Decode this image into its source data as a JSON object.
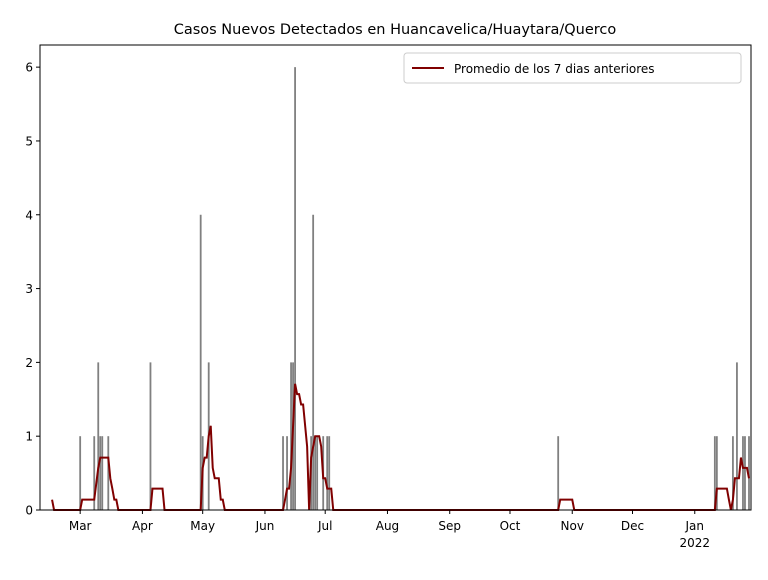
{
  "chart_data": {
    "type": "bar_line",
    "title": "Casos Nuevos Detectados en Huancavelica/Huaytara/Querco",
    "xlim": [
      -1,
      353
    ],
    "xticks": [
      {
        "value": 19,
        "label": "Mar"
      },
      {
        "value": 50,
        "label": "Apr"
      },
      {
        "value": 80,
        "label": "May"
      },
      {
        "value": 111,
        "label": "Jun"
      },
      {
        "value": 141,
        "label": "Jul"
      },
      {
        "value": 172,
        "label": "Aug"
      },
      {
        "value": 203,
        "label": "Sep"
      },
      {
        "value": 233,
        "label": "Oct"
      },
      {
        "value": 264,
        "label": "Nov"
      },
      {
        "value": 294,
        "label": "Dec"
      },
      {
        "value": 325,
        "label": "Jan"
      }
    ],
    "x_year_label": "2022",
    "ylim": [
      0,
      6.3
    ],
    "yticks": [
      0,
      1,
      2,
      3,
      4,
      5,
      6
    ],
    "legend": "upper right",
    "bars": {
      "color": "#808080",
      "x": [
        19,
        26,
        28,
        29,
        30,
        33,
        54,
        79,
        80,
        83,
        120,
        122,
        124,
        125,
        126,
        134,
        135,
        136,
        137,
        140,
        142,
        143,
        257,
        335,
        336,
        344,
        346,
        349,
        350,
        352
      ],
      "values": [
        1,
        1,
        2,
        1,
        1,
        1,
        2,
        4,
        1,
        2,
        1,
        1,
        2,
        2,
        6,
        1,
        4,
        1,
        1,
        1,
        1,
        1,
        1,
        1,
        1,
        1,
        2,
        1,
        1,
        1
      ]
    },
    "series": [
      {
        "name": "Promedio de los 7 dias anteriores",
        "color": "#800000",
        "x": [
          5,
          6,
          19,
          20,
          26,
          28,
          29,
          33,
          34,
          35,
          36,
          37,
          38,
          54,
          55,
          60,
          61,
          79,
          80,
          81,
          82,
          83,
          84,
          85,
          86,
          88,
          89,
          90,
          91,
          120,
          121,
          122,
          123,
          124,
          126,
          127,
          128,
          129,
          130,
          132,
          133,
          134,
          135,
          136,
          138,
          139,
          140,
          141,
          142,
          144,
          145,
          257,
          258,
          264,
          265,
          335,
          336,
          341,
          342,
          343,
          344,
          345,
          347,
          348,
          349,
          351,
          352
        ],
        "values": [
          0.14,
          0,
          0,
          0.14,
          0.14,
          0.57,
          0.71,
          0.71,
          0.43,
          0.29,
          0.14,
          0.14,
          0,
          0,
          0.29,
          0.29,
          0,
          0,
          0.57,
          0.71,
          0.71,
          1,
          1.14,
          0.57,
          0.43,
          0.43,
          0.14,
          0.14,
          0,
          0,
          0.14,
          0.29,
          0.29,
          0.57,
          1.71,
          1.57,
          1.57,
          1.43,
          1.43,
          0.86,
          0,
          0.71,
          0.86,
          1,
          1,
          0.86,
          0.43,
          0.43,
          0.29,
          0.29,
          0,
          0,
          0.14,
          0.14,
          0,
          0,
          0.29,
          0.29,
          0.14,
          0,
          0.14,
          0.43,
          0.43,
          0.71,
          0.57,
          0.57,
          0.43
        ]
      }
    ]
  }
}
